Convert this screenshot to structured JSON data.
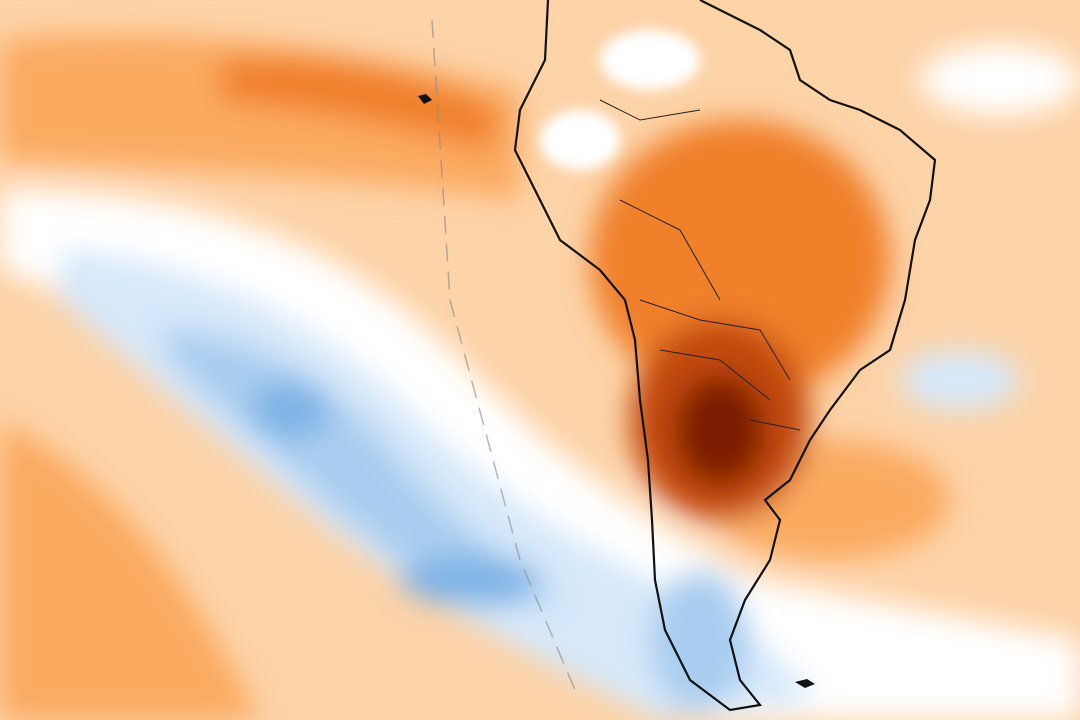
{
  "map": {
    "kind": "temperature-anomaly",
    "region": "South America",
    "palette": {
      "strong_warm": "#7a1a06",
      "warm_dark": "#c2480e",
      "warm": "#f0802a",
      "warm_mid": "#fbaa60",
      "warm_light": "#fdd3a8",
      "neutral": "#ffffff",
      "cool_light": "#d6e8fa",
      "cool": "#a9cdf0",
      "cool_dark": "#7fb4e6",
      "coastline": "#111111"
    }
  }
}
